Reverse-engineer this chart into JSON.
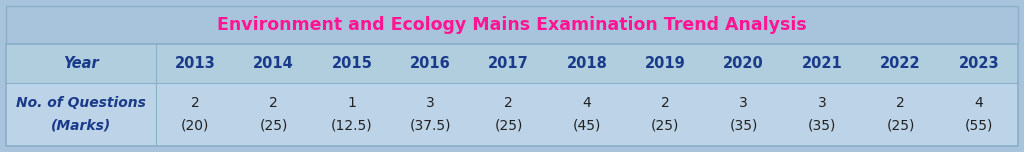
{
  "title": "Environment and Ecology Mains Examination Trend Analysis",
  "title_color": "#FF1493",
  "title_fontsize": 12.5,
  "title_bg": "#A8C4DC",
  "header_bg": "#B0CEDE",
  "row_bg": "#BDD4E8",
  "outer_bg": "#A8C4DC",
  "border_color": "#8AAFC8",
  "years": [
    "Year",
    "2013",
    "2014",
    "2015",
    "2016",
    "2017",
    "2018",
    "2019",
    "2020",
    "2021",
    "2022",
    "2023"
  ],
  "row_label_line1": "No. of Questions",
  "row_label_line2": "(Marks)",
  "questions_line1": [
    "2",
    "2",
    "1",
    "3",
    "2",
    "4",
    "2",
    "3",
    "3",
    "2",
    "4"
  ],
  "questions_line2": [
    "(20)",
    "(25)",
    "(12.5)",
    "(37.5)",
    "(25)",
    "(45)",
    "(25)",
    "(35)",
    "(35)",
    "(25)",
    "(55)"
  ],
  "year_color": "#1a3a8a",
  "year_fontsize": 10.5,
  "year_bold": true,
  "data_color": "#222222",
  "data_fontsize": 10,
  "row_label_color": "#1a3a8a",
  "row_label_fontsize": 10,
  "fig_width": 10.24,
  "fig_height": 1.52,
  "dpi": 100
}
